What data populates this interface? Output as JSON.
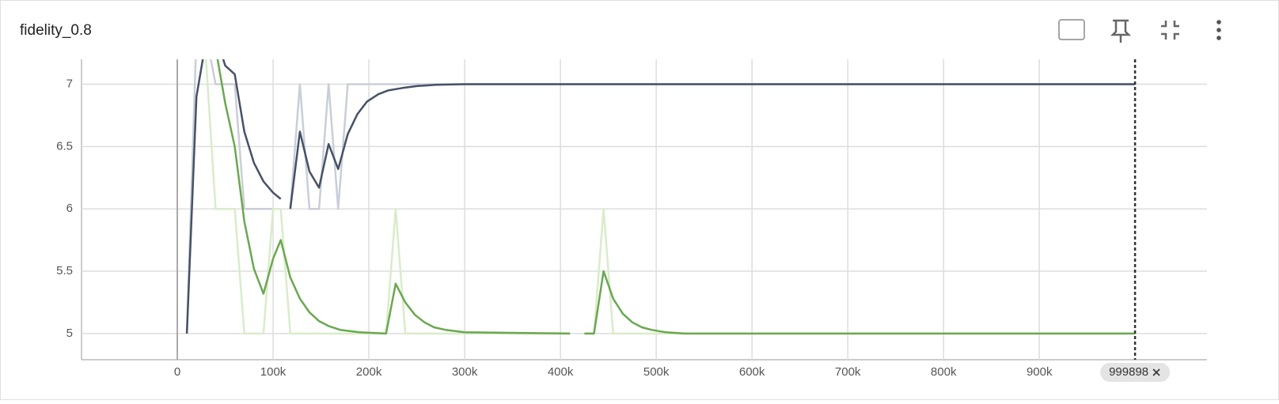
{
  "chart_data": {
    "type": "line",
    "title": "fidelity_0.8",
    "xlim": [
      -100000,
      1075000
    ],
    "ylim": [
      4.79,
      7.2
    ],
    "xticks": [
      {
        "value": 0,
        "label": "0"
      },
      {
        "value": 100000,
        "label": "100k"
      },
      {
        "value": 200000,
        "label": "200k"
      },
      {
        "value": 300000,
        "label": "300k"
      },
      {
        "value": 400000,
        "label": "400k"
      },
      {
        "value": 500000,
        "label": "500k"
      },
      {
        "value": 600000,
        "label": "600k"
      },
      {
        "value": 700000,
        "label": "700k"
      },
      {
        "value": 800000,
        "label": "800k"
      },
      {
        "value": 900000,
        "label": "900k"
      }
    ],
    "yticks": [
      5,
      5.5,
      6,
      6.5,
      7
    ],
    "grid": true,
    "cursor_x": 999898,
    "series": [
      {
        "color": "#c9ced8",
        "x": [
          10000,
          20000,
          30000,
          40000,
          50000,
          60000,
          70000,
          80000,
          90000,
          100000,
          108000,
          113000,
          118000,
          128000,
          138000,
          148000,
          158000,
          168000,
          178000,
          188000,
          1000000
        ],
        "values": [
          5,
          7.4,
          7.4,
          7,
          7,
          7,
          6,
          6,
          6,
          6,
          6,
          null,
          6,
          7,
          6,
          6,
          7,
          6,
          7,
          7,
          7
        ]
      },
      {
        "color": "#d9ecca",
        "x": [
          20000,
          30000,
          40000,
          50000,
          60000,
          70000,
          80000,
          90000,
          100000,
          108000,
          118000,
          218000,
          228000,
          238000,
          410000,
          418000,
          425000,
          435000,
          445000,
          455000,
          1000000
        ],
        "values": [
          7.4,
          7.2,
          6,
          6,
          6,
          5,
          5,
          5,
          6,
          6,
          5,
          5,
          6,
          5,
          5,
          null,
          5,
          5,
          6,
          5,
          5
        ]
      },
      {
        "color": "#475166",
        "x": [
          10000,
          20000,
          30000,
          40000,
          50000,
          60000,
          70000,
          80000,
          90000,
          100000,
          108000,
          113000,
          118000,
          128000,
          138000,
          148000,
          158000,
          168000,
          178000,
          188000,
          198000,
          210000,
          220000,
          235000,
          250000,
          270000,
          300000,
          1000000
        ],
        "values": [
          5,
          6.9,
          7.35,
          7.4,
          7.15,
          7.08,
          6.62,
          6.37,
          6.22,
          6.13,
          6.08,
          null,
          6,
          6.62,
          6.3,
          6.17,
          6.52,
          6.32,
          6.6,
          6.76,
          6.86,
          6.92,
          6.95,
          6.97,
          6.985,
          6.995,
          7,
          7
        ]
      },
      {
        "color": "#6aa84f",
        "x": [
          35000,
          42000,
          50000,
          60000,
          70000,
          80000,
          90000,
          100000,
          108000,
          118000,
          128000,
          138000,
          148000,
          158000,
          170000,
          180000,
          190000,
          218000,
          228000,
          238000,
          248000,
          258000,
          268000,
          280000,
          290000,
          300000,
          410000,
          418000,
          425000,
          435000,
          445000,
          455000,
          465000,
          475000,
          485000,
          495000,
          510000,
          530000,
          1000000
        ],
        "values": [
          7.4,
          7.2,
          6.85,
          6.5,
          5.9,
          5.52,
          5.32,
          5.6,
          5.75,
          5.45,
          5.28,
          5.17,
          5.1,
          5.06,
          5.03,
          5.02,
          5.01,
          5,
          5.4,
          5.25,
          5.15,
          5.09,
          5.05,
          5.03,
          5.02,
          5.01,
          5,
          null,
          5,
          5,
          5.5,
          5.28,
          5.16,
          5.09,
          5.05,
          5.03,
          5.01,
          5,
          5
        ]
      }
    ]
  }
}
